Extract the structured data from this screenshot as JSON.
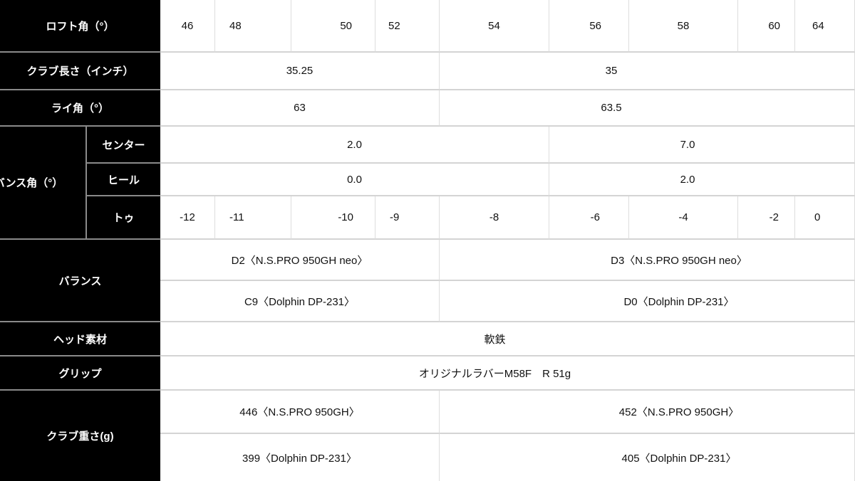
{
  "rows": {
    "loft": {
      "label": "ロフト角（°）",
      "values": [
        "46",
        "48",
        "50",
        "52",
        "54",
        "56",
        "58",
        "60",
        "64"
      ]
    },
    "length": {
      "label": "クラブ長さ（インチ）",
      "values": [
        "35.25",
        "35"
      ]
    },
    "lie": {
      "label": "ライ角（°）",
      "values": [
        "63",
        "63.5"
      ]
    },
    "bounce": {
      "label": "バンス角（°）",
      "center": {
        "label": "センター",
        "values": [
          "2.0",
          "7.0"
        ]
      },
      "heel": {
        "label": "ヒール",
        "values": [
          "0.0",
          "2.0"
        ]
      },
      "toe": {
        "label": "トゥ",
        "values": [
          "-12",
          "-11",
          "-10",
          "-9",
          "-8",
          "-6",
          "-4",
          "-2",
          "0"
        ]
      }
    },
    "balance": {
      "label": "バランス",
      "values": [
        "D2〈N.S.PRO 950GH neo〉",
        "D3〈N.S.PRO 950GH neo〉",
        "C9〈Dolphin DP-231〉",
        "D0〈Dolphin DP-231〉"
      ]
    },
    "head_material": {
      "label": "ヘッド素材",
      "value": "軟鉄"
    },
    "grip": {
      "label": "グリップ",
      "value": "オリジナルラバーM58F　R 51g"
    },
    "weight": {
      "label": "クラブ重さ(g)",
      "values": [
        "446〈N.S.PRO 950GH〉",
        "452〈N.S.PRO 950GH〉",
        "399〈Dolphin DP-231〉",
        "405〈Dolphin DP-231〉"
      ]
    }
  }
}
